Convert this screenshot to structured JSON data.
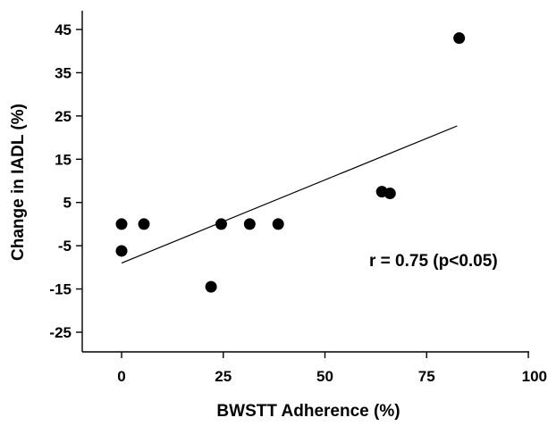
{
  "chart_data": {
    "type": "scatter",
    "title": "",
    "xlabel": "BWSTT Adherence (%)",
    "ylabel": "Change in IADL (%)",
    "xlim": [
      -10,
      100
    ],
    "ylim": [
      -35,
      50
    ],
    "x_ticks": [
      0,
      25,
      50,
      75,
      100
    ],
    "x_tick_labels": [
      "0",
      "25",
      "50",
      "75",
      "100"
    ],
    "y_ticks": [
      45,
      35,
      25,
      15,
      5,
      -5,
      -15,
      -25
    ],
    "y_tick_labels": [
      "45",
      "35",
      "25",
      "15",
      "5",
      "-5",
      "-15",
      "-25"
    ],
    "grid": false,
    "points": [
      {
        "x": 0,
        "y": 0
      },
      {
        "x": 0,
        "y": -6.2
      },
      {
        "x": 5.5,
        "y": 0
      },
      {
        "x": 22,
        "y": -14.5
      },
      {
        "x": 24.5,
        "y": 0
      },
      {
        "x": 31.5,
        "y": 0
      },
      {
        "x": 38.5,
        "y": 0
      },
      {
        "x": 64,
        "y": 7.5
      },
      {
        "x": 66,
        "y": 7.1
      },
      {
        "x": 83,
        "y": 43
      }
    ],
    "trendline": {
      "x": [
        0,
        82.5
      ],
      "y": [
        -9,
        22.7
      ]
    },
    "annotation": "r = 0.75 (p<0.05)",
    "marker_color": "#000000"
  }
}
